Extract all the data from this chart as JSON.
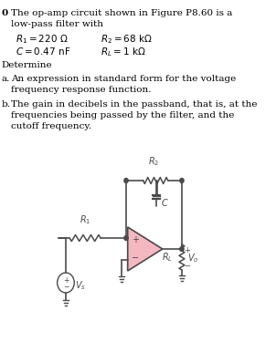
{
  "title_number": "0",
  "title_text": "The op-amp circuit shown in Figure P8.60 is a\nlow-pass filter with",
  "params": [
    [
      "R_1 = 220 \\Omega",
      "R_2 = 68 k\\Omega"
    ],
    [
      "C = 0.47 nF",
      "R_L = 1 k\\Omega"
    ]
  ],
  "determine": "Determine",
  "parts": [
    [
      "a.",
      "An expression in standard form for the voltage\nfrequency response function."
    ],
    [
      "b.",
      "The gain in decibels in the passband, that is, at the\nfrequencies being passed by the filter, and the\ncutoff frequency."
    ]
  ],
  "bg_color": "#ffffff",
  "text_color": "#000000",
  "circuit_color": "#4a4a4a",
  "opamp_fill": "#f4b8c1",
  "opamp_stroke": "#4a4a4a"
}
